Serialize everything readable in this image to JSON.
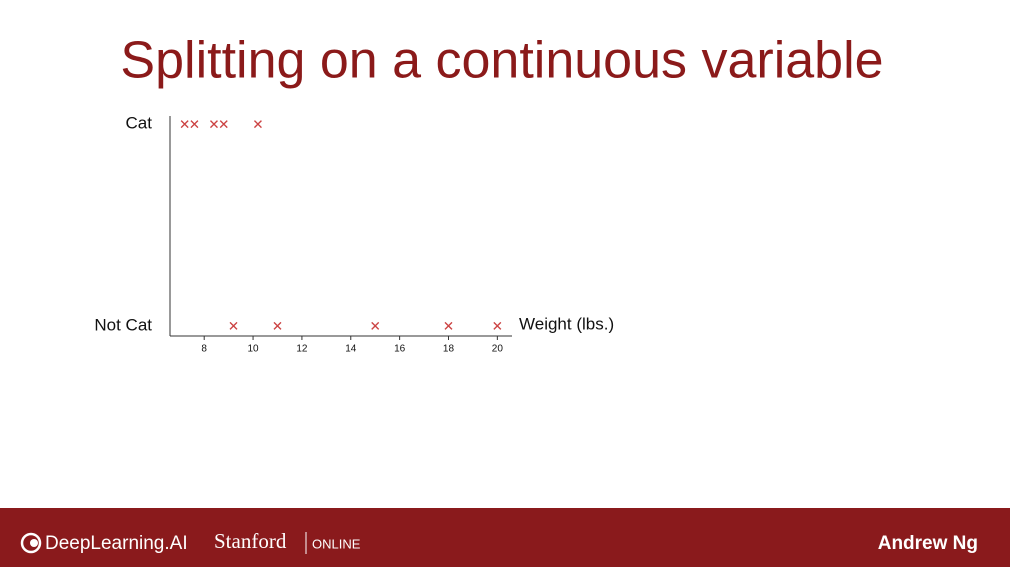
{
  "chart_data": {
    "type": "scatter",
    "title": "Splitting on a continuous variable",
    "x_label": "Weight (lbs.)",
    "x": [
      7.2,
      7.6,
      8.4,
      8.8,
      10.2,
      9.2,
      11.0,
      15.0,
      18.0,
      20.0
    ],
    "values": [
      1,
      1,
      1,
      1,
      1,
      0,
      0,
      0,
      0,
      0
    ],
    "marker": "x",
    "color": "#cc4444",
    "xlim": [
      6.6,
      20.6
    ],
    "xticks": [
      8,
      10,
      12,
      14,
      16,
      18,
      20
    ],
    "ylim": [
      -0.05,
      1.04
    ],
    "yticks": [
      {
        "value": 0,
        "label": "Not Cat"
      },
      {
        "value": 1,
        "label": "Cat"
      }
    ]
  },
  "footer": {
    "brand": "DeepLearning.AI",
    "university": "Stanford",
    "university_tag": "ONLINE",
    "presenter": "Andrew Ng"
  }
}
